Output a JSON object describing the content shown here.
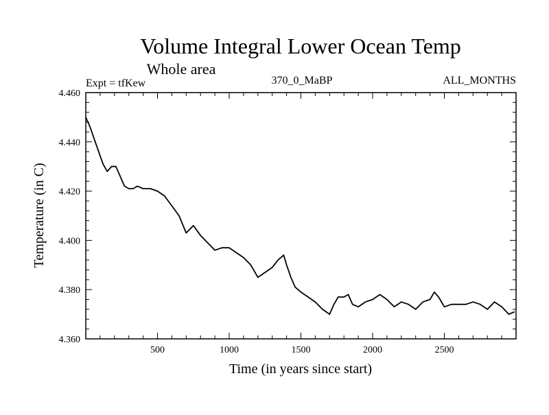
{
  "chart_data": {
    "type": "line",
    "title": "Volume Integral Lower Ocean Temp",
    "subtitle": "Whole area",
    "annotations": {
      "left": "Expt = tfKew",
      "center": "370_0_MaBP",
      "right": "ALL_MONTHS"
    },
    "xlabel": "Time (in years since start)",
    "ylabel": "Temperature (in C)",
    "xlim": [
      0,
      3000
    ],
    "ylim": [
      4.36,
      4.46
    ],
    "xticks": [
      500,
      1000,
      1500,
      2000,
      2500
    ],
    "yticks": [
      "4.360",
      "4.380",
      "4.400",
      "4.420",
      "4.440",
      "4.460"
    ],
    "grid": false,
    "series": [
      {
        "color": "#000000",
        "x": [
          0,
          30,
          60,
          90,
          120,
          150,
          180,
          210,
          240,
          270,
          300,
          330,
          360,
          400,
          450,
          500,
          550,
          600,
          650,
          700,
          750,
          800,
          850,
          900,
          950,
          1000,
          1050,
          1100,
          1150,
          1200,
          1250,
          1300,
          1340,
          1380,
          1400,
          1430,
          1460,
          1500,
          1550,
          1600,
          1650,
          1700,
          1730,
          1760,
          1800,
          1830,
          1860,
          1900,
          1950,
          2000,
          2050,
          2100,
          2150,
          2200,
          2250,
          2300,
          2350,
          2400,
          2430,
          2460,
          2500,
          2550,
          2600,
          2650,
          2700,
          2750,
          2800,
          2850,
          2900,
          2950,
          2990
        ],
        "y": [
          4.45,
          4.446,
          4.441,
          4.436,
          4.431,
          4.428,
          4.43,
          4.43,
          4.426,
          4.422,
          4.421,
          4.421,
          4.422,
          4.421,
          4.421,
          4.42,
          4.418,
          4.414,
          4.41,
          4.403,
          4.406,
          4.402,
          4.399,
          4.396,
          4.397,
          4.397,
          4.395,
          4.393,
          4.39,
          4.385,
          4.387,
          4.389,
          4.392,
          4.394,
          4.39,
          4.385,
          4.381,
          4.379,
          4.377,
          4.375,
          4.372,
          4.37,
          4.374,
          4.377,
          4.377,
          4.378,
          4.374,
          4.373,
          4.375,
          4.376,
          4.378,
          4.376,
          4.373,
          4.375,
          4.374,
          4.372,
          4.375,
          4.376,
          4.379,
          4.377,
          4.373,
          4.374,
          4.374,
          4.374,
          4.375,
          4.374,
          4.372,
          4.375,
          4.373,
          4.37,
          4.371
        ]
      }
    ]
  }
}
